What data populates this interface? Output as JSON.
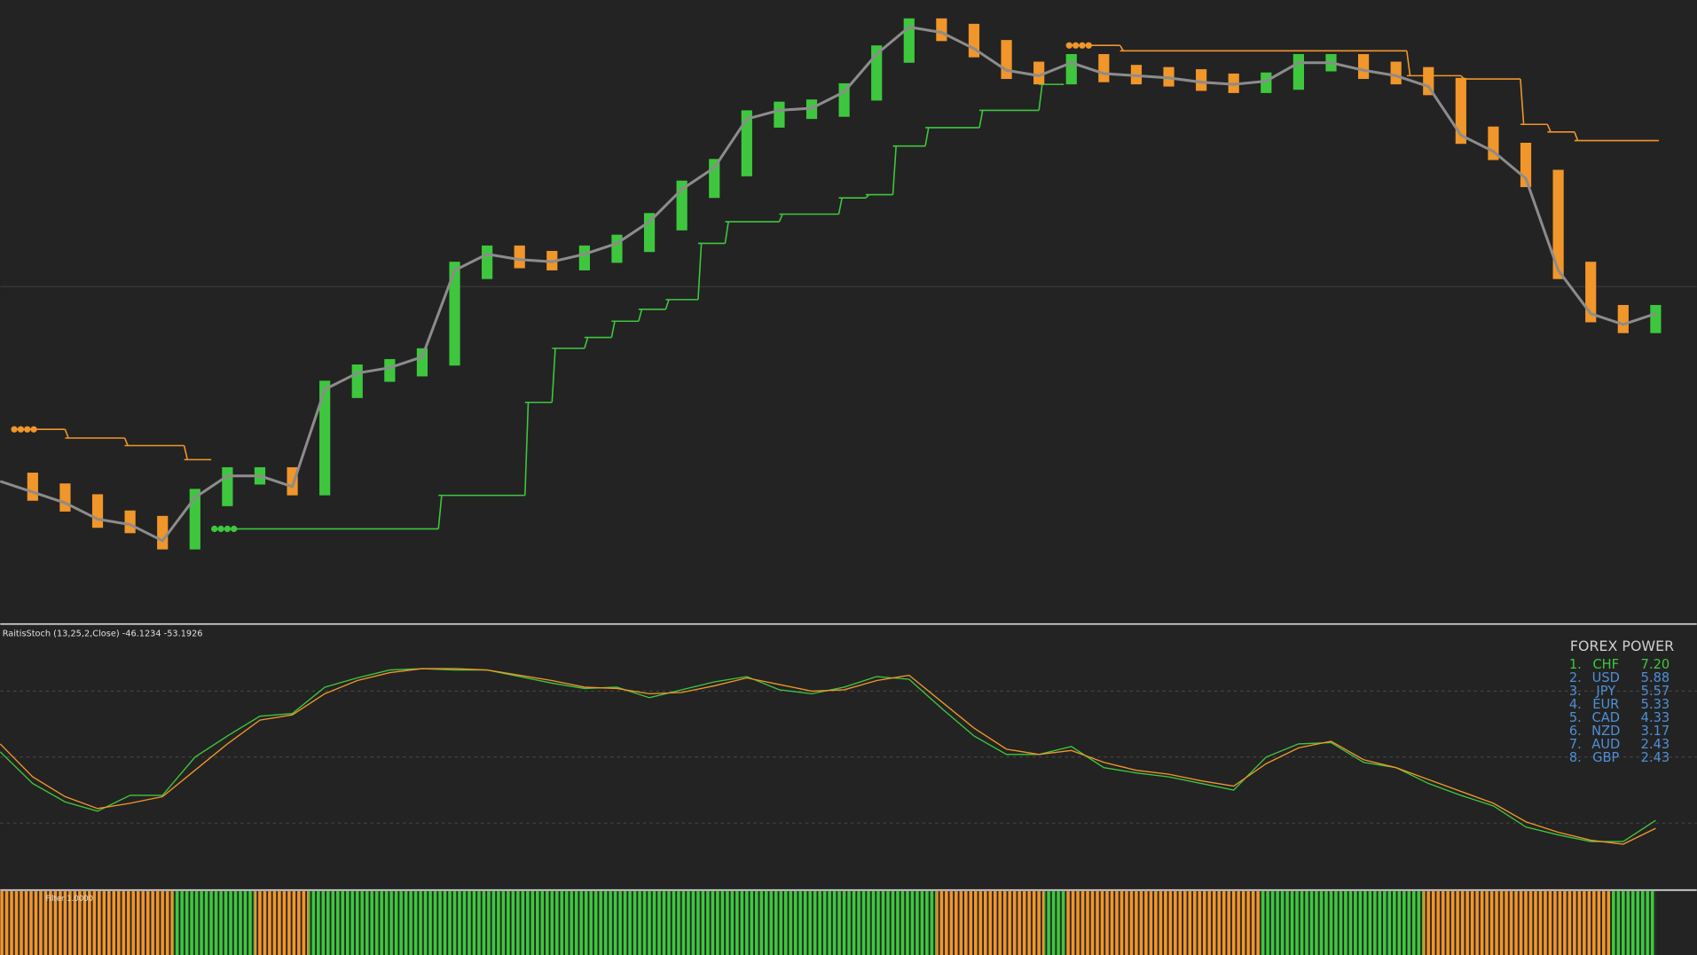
{
  "chart_data": [
    {
      "type": "candles-ma",
      "x": [
        0,
        30,
        60,
        90,
        120,
        150,
        180,
        210,
        240,
        270,
        300,
        330,
        360,
        390,
        420,
        450,
        480,
        510,
        540,
        570,
        600,
        630,
        660,
        690,
        720,
        750,
        780,
        810,
        840,
        870,
        900,
        930,
        960,
        990,
        1020,
        1050,
        1080,
        1110,
        1140,
        1170,
        1200,
        1230,
        1260,
        1290,
        1320,
        1350,
        1380,
        1410,
        1440,
        1470,
        1500,
        1530
      ],
      "ma": [
        131,
        121,
        111,
        96,
        91,
        76,
        116,
        136,
        136,
        126,
        216,
        231,
        236,
        246,
        326,
        341,
        336,
        334,
        341,
        351,
        371,
        401,
        421,
        466,
        474,
        476,
        491,
        526,
        551,
        546,
        531,
        511,
        506,
        518,
        508,
        506,
        504,
        500,
        498,
        501,
        518,
        518,
        511,
        506,
        496,
        451,
        436,
        411,
        326,
        286,
        276,
        286
      ],
      "xlim": [
        0,
        1568
      ],
      "ylim": [
        0,
        576
      ],
      "hline": 311,
      "colors": {
        "up": "#3ec73e",
        "down": "#f0962a",
        "ma": "#8c8c8c"
      },
      "stops": [
        {
          "color": "#f0962a",
          "x": [
            10,
            60,
            115,
            170,
            192
          ],
          "values": [
            179,
            171,
            164,
            151,
            151
          ]
        },
        {
          "color": "#3ec73e",
          "x": [
            195,
            405,
            485,
            510,
            540,
            565,
            590,
            615,
            645,
            670,
            720,
            775,
            800,
            825,
            855,
            905,
            960,
            980
          ],
          "values": [
            87,
            118,
            204,
            254,
            264,
            279,
            290,
            299,
            351,
            371,
            378,
            393,
            396,
            441,
            458,
            474,
            498,
            498
          ]
        },
        {
          "color": "#f0962a",
          "x": [
            985,
            1035,
            1300,
            1350,
            1405,
            1430,
            1455,
            1530
          ],
          "values": [
            534,
            529,
            506,
            503,
            461,
            454,
            446,
            446
          ]
        }
      ]
    },
    {
      "type": "line",
      "title": "RaitisStoch (13,25,2,Close) -46.1234 -53.1926",
      "x": [
        0,
        30,
        60,
        90,
        120,
        150,
        180,
        210,
        240,
        270,
        300,
        330,
        360,
        390,
        420,
        450,
        480,
        510,
        540,
        570,
        600,
        630,
        660,
        690,
        720,
        750,
        780,
        810,
        840,
        870,
        900,
        930,
        960,
        990,
        1020,
        1050,
        1080,
        1110,
        1140,
        1170,
        1200,
        1230,
        1260,
        1290,
        1320,
        1350,
        1380,
        1410,
        1440,
        1470,
        1500,
        1530
      ],
      "series": [
        {
          "color": "#3ec73e",
          "values": [
            4,
            -20,
            -34,
            -41,
            -29,
            -29,
            0,
            16,
            31,
            33,
            53,
            60,
            66,
            67,
            66,
            66,
            61,
            56,
            52,
            53,
            45,
            51,
            57,
            61,
            51,
            48,
            53,
            61,
            59,
            37,
            16,
            2,
            2,
            8,
            -8,
            -12,
            -15,
            -20,
            -25,
            0,
            10,
            11,
            -4,
            -8,
            -20,
            -29,
            -37,
            -53,
            -59,
            -64,
            -64,
            -48
          ]
        },
        {
          "color": "#f0962a",
          "values": [
            10,
            -15,
            -30,
            -39,
            -35,
            -30,
            -10,
            10,
            28,
            32,
            48,
            58,
            64,
            67,
            67,
            66,
            62,
            58,
            53,
            52,
            48,
            49,
            54,
            60,
            55,
            50,
            51,
            58,
            62,
            42,
            22,
            6,
            2,
            5,
            -4,
            -10,
            -13,
            -18,
            -22,
            -5,
            7,
            12,
            -2,
            -8,
            -17,
            -26,
            -35,
            -49,
            -57,
            -63,
            -66,
            -54
          ]
        }
      ],
      "xlim": [
        0,
        1568
      ],
      "ylim": [
        -100,
        100
      ],
      "yticks": [
        50,
        0,
        -50
      ],
      "grid": true
    },
    {
      "type": "bands",
      "title": "Filter 1.0000",
      "breaks": [
        0,
        160,
        235,
        285,
        865,
        965,
        985,
        1165,
        1315,
        1488,
        1530
      ],
      "colors": [
        "#f0962a",
        "#3ec73e",
        "#f0962a",
        "#3ec73e",
        "#f0962a",
        "#3ec73e",
        "#f0962a",
        "#3ec73e",
        "#f0962a",
        "#3ec73e"
      ],
      "xlim": [
        0,
        1568
      ]
    }
  ],
  "forex_power": {
    "title": "FOREX POWER",
    "color": "#4f8fd6",
    "highlight_color": "#3ec73e",
    "rows": [
      [
        "1.",
        "CHF",
        "7.20"
      ],
      [
        "2.",
        "USD",
        "5.88"
      ],
      [
        "3.",
        "JPY",
        "5.57"
      ],
      [
        "4.",
        "EUR",
        "5.33"
      ],
      [
        "5.",
        "CAD",
        "4.33"
      ],
      [
        "6.",
        "NZD",
        "3.17"
      ],
      [
        "7.",
        "AUD",
        "2.43"
      ],
      [
        "8.",
        "GBP",
        "2.43"
      ]
    ]
  }
}
